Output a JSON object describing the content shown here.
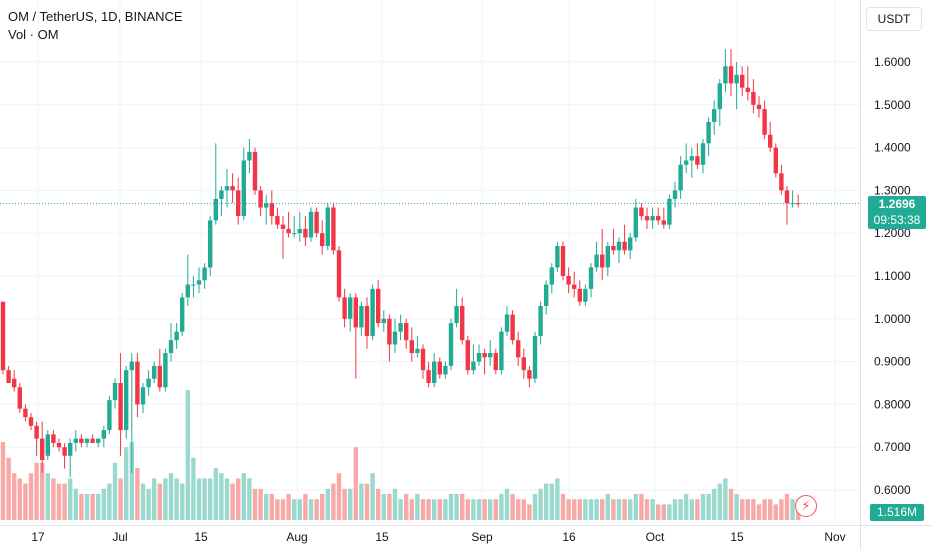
{
  "legend": {
    "symbol": "OM / TetherUS, 1D, BINANCE",
    "volume_label": "Vol · OM"
  },
  "currency_button": "USDT",
  "last_price": {
    "value": "1.2696",
    "countdown": "09:53:38"
  },
  "volume_readout": "1.516M",
  "colors": {
    "up": "#22ab94",
    "down": "#f23645",
    "up_vol": "#9ad9ce",
    "down_vol": "#f7a9a7",
    "last_line": "#22ab94"
  },
  "icons": {
    "flash": "lightning-icon"
  },
  "chart_data": {
    "type": "candlestick",
    "title": "OM / TetherUS, 1D, BINANCE",
    "y_ticks": [
      "1.6000",
      "1.5000",
      "1.4000",
      "1.3000",
      "1.2000",
      "1.1000",
      "1.0000",
      "0.9000",
      "0.8000",
      "0.7000",
      "0.6000"
    ],
    "ylim": [
      0.57,
      1.66
    ],
    "x_ticks": [
      "17",
      "Jul",
      "15",
      "Aug",
      "15",
      "Sep",
      "16",
      "Oct",
      "15",
      "Nov"
    ],
    "last_value": 1.2696,
    "grid": true,
    "ohlc": [
      [
        1.04,
        1.04,
        0.87,
        0.88
      ],
      [
        0.88,
        0.89,
        0.85,
        0.85
      ],
      [
        0.86,
        0.88,
        0.83,
        0.84
      ],
      [
        0.84,
        0.85,
        0.78,
        0.79
      ],
      [
        0.79,
        0.8,
        0.76,
        0.77
      ],
      [
        0.77,
        0.78,
        0.74,
        0.75
      ],
      [
        0.75,
        0.76,
        0.68,
        0.72
      ],
      [
        0.72,
        0.76,
        0.64,
        0.67
      ],
      [
        0.68,
        0.74,
        0.67,
        0.73
      ],
      [
        0.73,
        0.74,
        0.7,
        0.71
      ],
      [
        0.71,
        0.72,
        0.69,
        0.7
      ],
      [
        0.7,
        0.71,
        0.65,
        0.68
      ],
      [
        0.68,
        0.72,
        0.63,
        0.71
      ],
      [
        0.71,
        0.74,
        0.69,
        0.72
      ],
      [
        0.72,
        0.73,
        0.7,
        0.71
      ],
      [
        0.71,
        0.72,
        0.7,
        0.72
      ],
      [
        0.72,
        0.73,
        0.71,
        0.71
      ],
      [
        0.71,
        0.72,
        0.7,
        0.72
      ],
      [
        0.72,
        0.75,
        0.7,
        0.74
      ],
      [
        0.74,
        0.82,
        0.73,
        0.81
      ],
      [
        0.81,
        0.86,
        0.79,
        0.85
      ],
      [
        0.85,
        0.92,
        0.68,
        0.74
      ],
      [
        0.74,
        0.89,
        0.72,
        0.88
      ],
      [
        0.88,
        0.92,
        0.64,
        0.9
      ],
      [
        0.9,
        0.92,
        0.77,
        0.8
      ],
      [
        0.8,
        0.85,
        0.78,
        0.84
      ],
      [
        0.84,
        0.88,
        0.82,
        0.86
      ],
      [
        0.86,
        0.9,
        0.85,
        0.89
      ],
      [
        0.89,
        0.93,
        0.83,
        0.84
      ],
      [
        0.84,
        0.93,
        0.83,
        0.92
      ],
      [
        0.92,
        0.99,
        0.9,
        0.95
      ],
      [
        0.95,
        0.99,
        0.93,
        0.97
      ],
      [
        0.97,
        1.06,
        0.96,
        1.05
      ],
      [
        1.05,
        1.15,
        1.03,
        1.08
      ],
      [
        1.08,
        1.1,
        1.05,
        1.08
      ],
      [
        1.08,
        1.12,
        1.06,
        1.09
      ],
      [
        1.09,
        1.13,
        1.07,
        1.12
      ],
      [
        1.12,
        1.24,
        1.1,
        1.23
      ],
      [
        1.23,
        1.41,
        1.22,
        1.28
      ],
      [
        1.28,
        1.31,
        1.24,
        1.3
      ],
      [
        1.3,
        1.35,
        1.26,
        1.31
      ],
      [
        1.31,
        1.34,
        1.27,
        1.3
      ],
      [
        1.3,
        1.33,
        1.22,
        1.24
      ],
      [
        1.24,
        1.4,
        1.23,
        1.37
      ],
      [
        1.37,
        1.42,
        1.34,
        1.39
      ],
      [
        1.39,
        1.4,
        1.29,
        1.3
      ],
      [
        1.3,
        1.31,
        1.24,
        1.26
      ],
      [
        1.26,
        1.29,
        1.22,
        1.27
      ],
      [
        1.27,
        1.3,
        1.22,
        1.24
      ],
      [
        1.24,
        1.26,
        1.21,
        1.22
      ],
      [
        1.22,
        1.24,
        1.14,
        1.21
      ],
      [
        1.21,
        1.25,
        1.19,
        1.2
      ],
      [
        1.2,
        1.24,
        1.19,
        1.2
      ],
      [
        1.2,
        1.25,
        1.18,
        1.21
      ],
      [
        1.21,
        1.24,
        1.17,
        1.19
      ],
      [
        1.19,
        1.26,
        1.18,
        1.25
      ],
      [
        1.25,
        1.26,
        1.19,
        1.2
      ],
      [
        1.2,
        1.23,
        1.15,
        1.17
      ],
      [
        1.17,
        1.27,
        1.16,
        1.26
      ],
      [
        1.26,
        1.27,
        1.15,
        1.16
      ],
      [
        1.16,
        1.17,
        1.04,
        1.05
      ],
      [
        1.05,
        1.07,
        0.98,
        1.0
      ],
      [
        1.0,
        1.06,
        0.97,
        1.05
      ],
      [
        1.05,
        1.06,
        0.86,
        0.98
      ],
      [
        0.98,
        1.04,
        0.96,
        1.03
      ],
      [
        1.03,
        1.05,
        0.93,
        0.96
      ],
      [
        0.96,
        1.08,
        0.95,
        1.07
      ],
      [
        1.07,
        1.09,
        0.98,
        0.99
      ],
      [
        0.99,
        1.02,
        0.97,
        1.0
      ],
      [
        1.0,
        1.01,
        0.9,
        0.94
      ],
      [
        0.94,
        1.0,
        0.92,
        0.97
      ],
      [
        0.97,
        1.01,
        0.95,
        0.99
      ],
      [
        0.99,
        1.0,
        0.93,
        0.95
      ],
      [
        0.95,
        0.98,
        0.9,
        0.92
      ],
      [
        0.92,
        0.96,
        0.91,
        0.93
      ],
      [
        0.93,
        0.94,
        0.86,
        0.88
      ],
      [
        0.88,
        0.9,
        0.84,
        0.85
      ],
      [
        0.85,
        0.92,
        0.84,
        0.9
      ],
      [
        0.9,
        0.91,
        0.86,
        0.87
      ],
      [
        0.87,
        0.9,
        0.86,
        0.89
      ],
      [
        0.89,
        1.0,
        0.88,
        0.99
      ],
      [
        0.99,
        1.07,
        0.98,
        1.03
      ],
      [
        1.03,
        1.05,
        0.94,
        0.95
      ],
      [
        0.95,
        0.96,
        0.87,
        0.88
      ],
      [
        0.88,
        0.94,
        0.87,
        0.9
      ],
      [
        0.9,
        0.94,
        0.89,
        0.92
      ],
      [
        0.92,
        0.93,
        0.87,
        0.91
      ],
      [
        0.91,
        0.95,
        0.89,
        0.92
      ],
      [
        0.92,
        0.93,
        0.87,
        0.88
      ],
      [
        0.88,
        0.98,
        0.87,
        0.97
      ],
      [
        0.97,
        1.03,
        0.96,
        1.01
      ],
      [
        1.01,
        1.02,
        0.94,
        0.95
      ],
      [
        0.95,
        0.97,
        0.89,
        0.91
      ],
      [
        0.91,
        0.93,
        0.86,
        0.88
      ],
      [
        0.88,
        0.89,
        0.84,
        0.86
      ],
      [
        0.86,
        0.97,
        0.85,
        0.96
      ],
      [
        0.96,
        1.04,
        0.94,
        1.03
      ],
      [
        1.03,
        1.09,
        1.01,
        1.08
      ],
      [
        1.08,
        1.13,
        1.06,
        1.12
      ],
      [
        1.12,
        1.18,
        1.11,
        1.17
      ],
      [
        1.17,
        1.18,
        1.09,
        1.1
      ],
      [
        1.1,
        1.12,
        1.06,
        1.08
      ],
      [
        1.08,
        1.11,
        1.05,
        1.07
      ],
      [
        1.07,
        1.09,
        1.03,
        1.04
      ],
      [
        1.04,
        1.08,
        1.03,
        1.07
      ],
      [
        1.07,
        1.13,
        1.05,
        1.12
      ],
      [
        1.12,
        1.18,
        1.11,
        1.15
      ],
      [
        1.15,
        1.21,
        1.09,
        1.12
      ],
      [
        1.12,
        1.18,
        1.1,
        1.17
      ],
      [
        1.17,
        1.21,
        1.15,
        1.16
      ],
      [
        1.16,
        1.19,
        1.13,
        1.18
      ],
      [
        1.18,
        1.22,
        1.15,
        1.16
      ],
      [
        1.16,
        1.2,
        1.14,
        1.19
      ],
      [
        1.19,
        1.28,
        1.18,
        1.26
      ],
      [
        1.26,
        1.27,
        1.23,
        1.24
      ],
      [
        1.24,
        1.26,
        1.21,
        1.23
      ],
      [
        1.23,
        1.26,
        1.21,
        1.24
      ],
      [
        1.24,
        1.26,
        1.22,
        1.23
      ],
      [
        1.23,
        1.26,
        1.21,
        1.22
      ],
      [
        1.22,
        1.29,
        1.21,
        1.28
      ],
      [
        1.28,
        1.32,
        1.26,
        1.3
      ],
      [
        1.3,
        1.38,
        1.28,
        1.36
      ],
      [
        1.36,
        1.41,
        1.34,
        1.37
      ],
      [
        1.37,
        1.4,
        1.33,
        1.38
      ],
      [
        1.38,
        1.41,
        1.35,
        1.36
      ],
      [
        1.36,
        1.42,
        1.34,
        1.41
      ],
      [
        1.41,
        1.47,
        1.38,
        1.46
      ],
      [
        1.46,
        1.51,
        1.43,
        1.49
      ],
      [
        1.49,
        1.56,
        1.45,
        1.55
      ],
      [
        1.55,
        1.63,
        1.53,
        1.59
      ],
      [
        1.59,
        1.63,
        1.52,
        1.55
      ],
      [
        1.55,
        1.6,
        1.49,
        1.57
      ],
      [
        1.57,
        1.59,
        1.52,
        1.54
      ],
      [
        1.54,
        1.59,
        1.51,
        1.53
      ],
      [
        1.53,
        1.56,
        1.48,
        1.5
      ],
      [
        1.5,
        1.52,
        1.47,
        1.49
      ],
      [
        1.49,
        1.51,
        1.42,
        1.43
      ],
      [
        1.43,
        1.46,
        1.39,
        1.4
      ],
      [
        1.4,
        1.41,
        1.33,
        1.34
      ],
      [
        1.34,
        1.36,
        1.29,
        1.3
      ],
      [
        1.3,
        1.31,
        1.22,
        1.27
      ],
      [
        1.27,
        1.3,
        1.26,
        1.27
      ],
      [
        1.27,
        1.29,
        1.26,
        1.2696
      ]
    ],
    "volume": [
      15,
      12,
      9,
      8,
      7,
      9,
      11,
      11,
      9,
      8,
      7,
      7,
      8,
      6,
      5,
      5,
      5,
      5,
      6,
      7,
      11,
      8,
      14,
      15,
      10,
      7,
      6,
      8,
      7,
      8,
      9,
      8,
      7,
      25,
      12,
      8,
      8,
      8,
      10,
      9,
      8,
      7,
      8,
      9,
      8,
      6,
      6,
      5,
      5,
      4,
      4,
      5,
      4,
      4,
      5,
      4,
      4,
      5,
      6,
      7,
      9,
      6,
      6,
      14,
      7,
      7,
      9,
      6,
      5,
      5,
      6,
      4,
      5,
      4,
      5,
      4,
      4,
      4,
      4,
      4,
      5,
      5,
      5,
      4,
      4,
      4,
      4,
      4,
      4,
      5,
      6,
      5,
      4,
      4,
      3,
      5,
      6,
      7,
      7,
      8,
      5,
      4,
      4,
      4,
      4,
      4,
      4,
      4,
      5,
      4,
      4,
      4,
      4,
      5,
      5,
      4,
      4,
      3,
      3,
      3,
      4,
      4,
      5,
      4,
      4,
      5,
      5,
      6,
      7,
      8,
      6,
      5,
      4,
      4,
      4,
      3,
      4,
      4,
      3,
      4,
      5,
      4,
      4
    ]
  }
}
